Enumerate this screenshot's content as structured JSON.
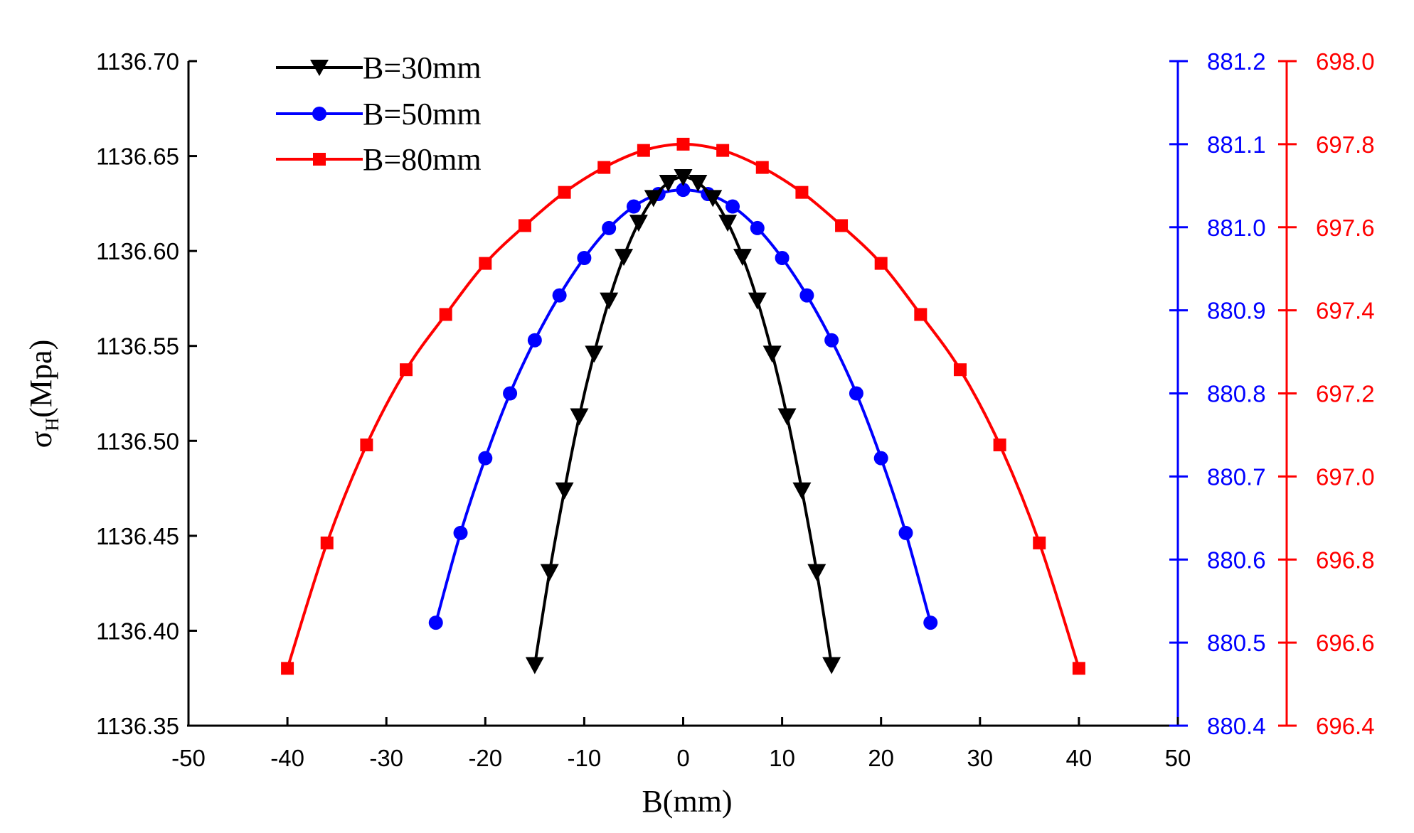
{
  "chart_data": {
    "type": "line",
    "xlabel": "B(mm)",
    "ylabel_main": "σ",
    "ylabel_sub": "H",
    "ylabel_unit": "(Mpa)",
    "xlim": [
      -50,
      50
    ],
    "x_ticks": [
      "-50",
      "-40",
      "-30",
      "-20",
      "-10",
      "0",
      "10",
      "20",
      "30",
      "40",
      "50"
    ],
    "axes": [
      {
        "id": "left",
        "color": "#000000",
        "ylim": [
          1136.35,
          1136.7
        ],
        "tick_values": [
          1136.35,
          1136.4,
          1136.45,
          1136.5,
          1136.55,
          1136.6,
          1136.65,
          1136.7
        ],
        "tick_labels": [
          "1136.35",
          "1136.40",
          "1136.45",
          "1136.50",
          "1136.55",
          "1136.60",
          "1136.65",
          "1136.70"
        ]
      },
      {
        "id": "right1",
        "color": "#0000ff",
        "ylim": [
          880.4,
          881.2
        ],
        "tick_values": [
          880.4,
          880.5,
          880.6,
          880.7,
          880.8,
          880.9,
          881.0,
          881.1,
          881.2
        ],
        "tick_labels": [
          "880.4",
          "880.5",
          "880.6",
          "880.7",
          "880.8",
          "880.9",
          "881.0",
          "881.1",
          "881.2"
        ]
      },
      {
        "id": "right2",
        "color": "#ff0000",
        "ylim": [
          696.4,
          698.0
        ],
        "tick_values": [
          696.4,
          696.6,
          696.8,
          697.0,
          697.2,
          697.4,
          697.6,
          697.8,
          698.0
        ],
        "tick_labels": [
          "696.4",
          "696.6",
          "696.8",
          "697.0",
          "697.2",
          "697.4",
          "697.6",
          "697.8",
          "698.0"
        ]
      }
    ],
    "series": [
      {
        "name": "B=30mm",
        "axis": "left",
        "color": "#000000",
        "marker": "triangle-down",
        "x": [
          -15,
          -13.5,
          -12,
          -10.5,
          -9,
          -7.5,
          -6,
          -4.5,
          -3,
          -1.5,
          0,
          1.5,
          3,
          4.5,
          6,
          7.5,
          9,
          10.5,
          12,
          13.5,
          15
        ],
        "y": [
          1136.382,
          1136.431,
          1136.474,
          1136.513,
          1136.546,
          1136.574,
          1136.597,
          1136.615,
          1136.628,
          1136.636,
          1136.639,
          1136.636,
          1136.628,
          1136.615,
          1136.597,
          1136.574,
          1136.546,
          1136.513,
          1136.474,
          1136.431,
          1136.382
        ]
      },
      {
        "name": "B=50mm",
        "axis": "right1",
        "color": "#0000ff",
        "marker": "circle",
        "x": [
          -25,
          -22.5,
          -20,
          -17.5,
          -15,
          -12.5,
          -10,
          -7.5,
          -5,
          -2.5,
          0,
          2.5,
          5,
          7.5,
          10,
          12.5,
          15,
          17.5,
          20,
          22.5,
          25
        ],
        "y": [
          880.524,
          880.632,
          880.722,
          880.8,
          880.864,
          880.918,
          880.963,
          880.999,
          881.025,
          881.04,
          881.045,
          881.04,
          881.025,
          880.999,
          880.963,
          880.918,
          880.864,
          880.8,
          880.722,
          880.632,
          880.524
        ]
      },
      {
        "name": "B=80mm",
        "axis": "right2",
        "color": "#ff0000",
        "marker": "square",
        "x": [
          -40,
          -36,
          -32,
          -28,
          -24,
          -20,
          -16,
          -12,
          -8,
          -4,
          0,
          4,
          8,
          12,
          16,
          20,
          24,
          28,
          32,
          36,
          40
        ],
        "y": [
          696.538,
          696.84,
          697.076,
          697.257,
          697.39,
          697.513,
          697.604,
          697.684,
          697.744,
          697.785,
          697.8,
          697.785,
          697.744,
          697.684,
          697.604,
          697.513,
          697.39,
          697.257,
          697.076,
          696.84,
          696.538
        ]
      }
    ]
  }
}
